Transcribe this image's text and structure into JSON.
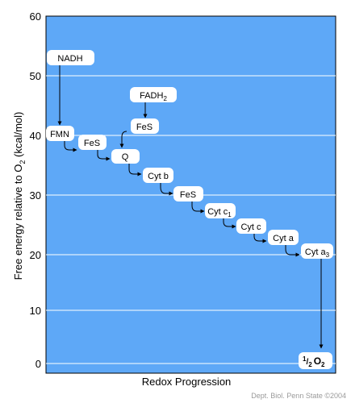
{
  "axes": {
    "ylabel_pre": "Free energy relative to O",
    "ylabel_sub": "2",
    "ylabel_post": " (kcal/mol)",
    "xlabel": "Redox Progression",
    "yticks": [
      "60",
      "50",
      "40",
      "30",
      "20",
      "10",
      "0"
    ]
  },
  "carriers": {
    "nadh": "NADH",
    "fadh": "FADH",
    "fadh_sub": "2",
    "fmn": "FMN",
    "fes1": "FeS",
    "fes2": "FeS",
    "q": "Q",
    "cytb": "Cyt b",
    "fes3": "FeS",
    "cytc1": "Cyt c",
    "cytc1_sub": "1",
    "cytc": "Cyt c",
    "cyta": "Cyt a",
    "cyta3": "Cyt a",
    "cyta3_sub": "3",
    "o2_num": "1",
    "o2_den": "2",
    "o2_o": "O",
    "o2_sub": "2"
  },
  "credit": "Dept. Biol. Penn State ©2004",
  "colors": {
    "plot_bg": "#5ea8f7",
    "grid": "#ffffff",
    "box_fill": "#ffffff",
    "arrow": "#000000"
  }
}
